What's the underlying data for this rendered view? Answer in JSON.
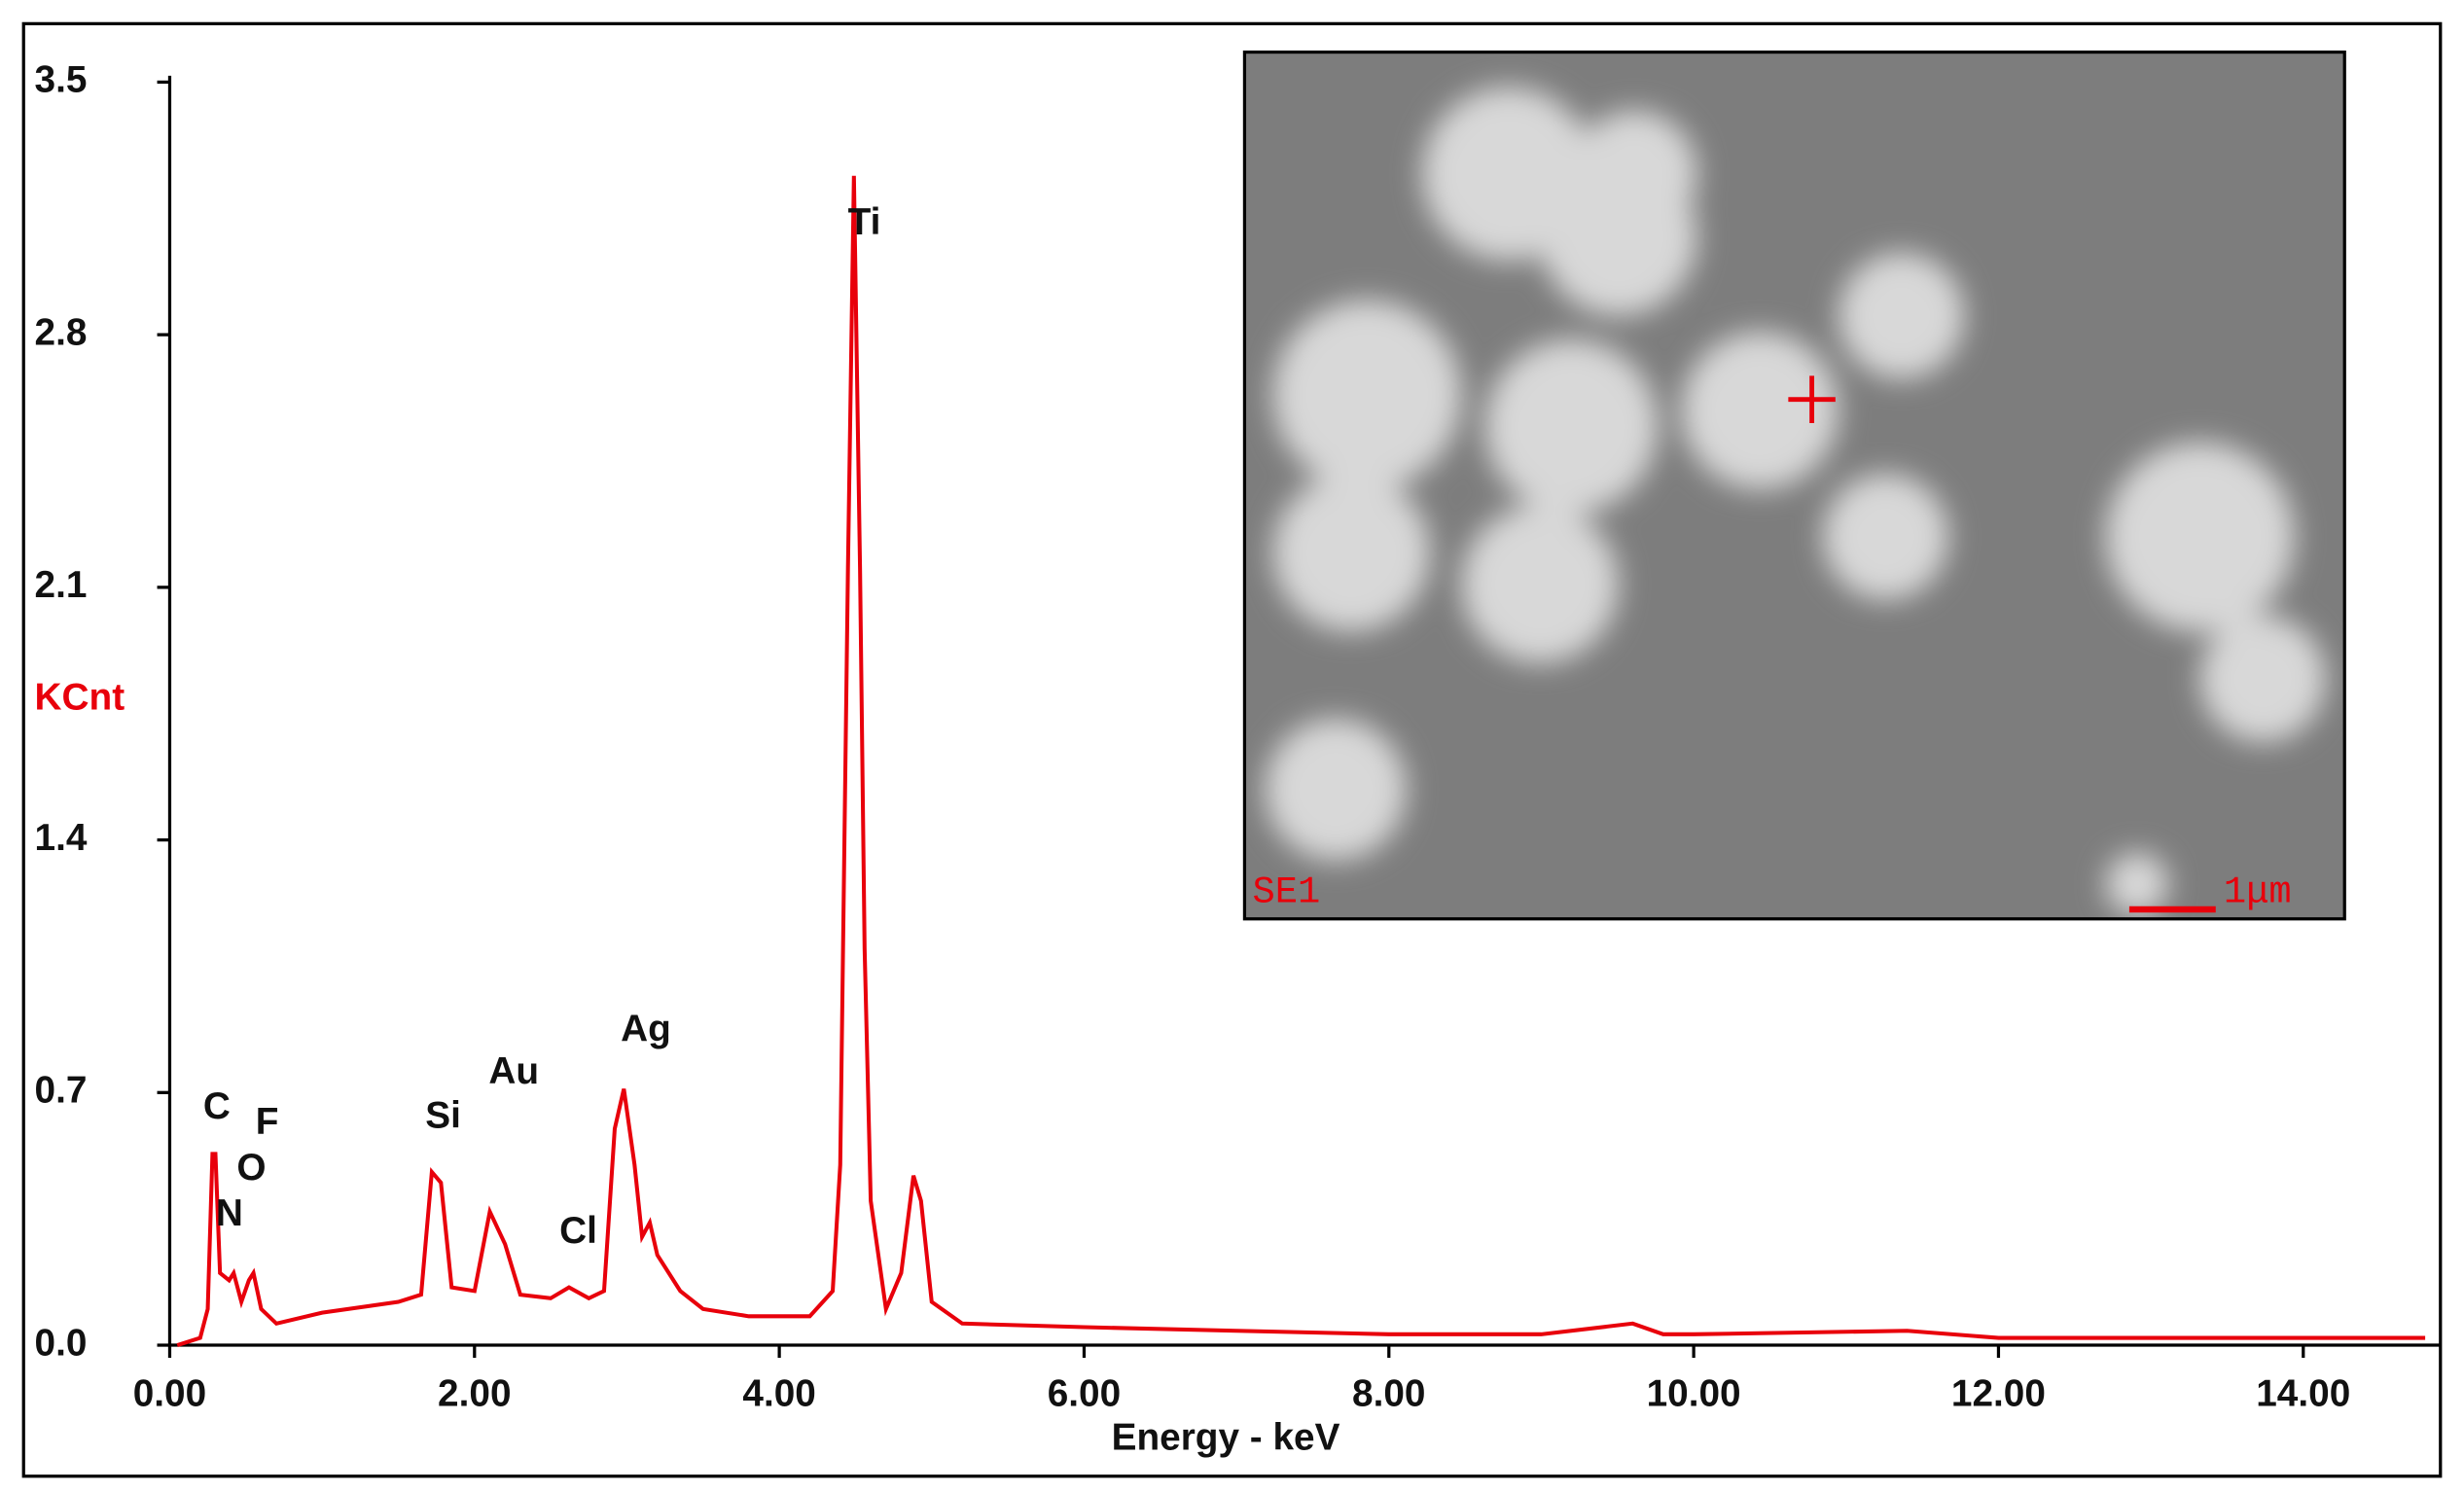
{
  "chart_data": {
    "type": "line",
    "x_label": "Energy - keV",
    "y_label": "KCnt",
    "x": [
      0.05,
      0.2,
      0.25,
      0.28,
      0.3,
      0.33,
      0.39,
      0.42,
      0.47,
      0.52,
      0.55,
      0.6,
      0.7,
      1.0,
      1.5,
      1.65,
      1.72,
      1.78,
      1.85,
      2.0,
      2.1,
      2.2,
      2.3,
      2.5,
      2.62,
      2.75,
      2.85,
      2.92,
      2.98,
      3.05,
      3.1,
      3.15,
      3.2,
      3.35,
      3.5,
      3.8,
      4.2,
      4.35,
      4.4,
      4.45,
      4.49,
      4.53,
      4.56,
      4.6,
      4.7,
      4.8,
      4.88,
      4.93,
      5.0,
      5.2,
      6,
      7,
      8,
      9,
      9.6,
      9.8,
      10,
      11.4,
      12,
      13,
      14,
      14.8
    ],
    "values": [
      0,
      0.02,
      0.1,
      0.53,
      0.53,
      0.2,
      0.18,
      0.2,
      0.12,
      0.18,
      0.2,
      0.1,
      0.06,
      0.09,
      0.12,
      0.14,
      0.48,
      0.45,
      0.16,
      0.15,
      0.37,
      0.28,
      0.14,
      0.13,
      0.16,
      0.13,
      0.15,
      0.6,
      0.71,
      0.5,
      0.3,
      0.34,
      0.25,
      0.15,
      0.1,
      0.08,
      0.08,
      0.15,
      0.5,
      2.15,
      3.24,
      2.15,
      1.1,
      0.4,
      0.1,
      0.2,
      0.47,
      0.4,
      0.12,
      0.06,
      0.05,
      0.04,
      0.03,
      0.03,
      0.06,
      0.03,
      0.03,
      0.04,
      0.02,
      0.02,
      0.02,
      0.02
    ],
    "color": "#e8000b",
    "xlim": [
      0,
      14.9
    ],
    "ylim": [
      0,
      3.5
    ],
    "xticks": [
      {
        "value": 0,
        "label": "0.00"
      },
      {
        "value": 2,
        "label": "2.00"
      },
      {
        "value": 4,
        "label": "4.00"
      },
      {
        "value": 6,
        "label": "6.00"
      },
      {
        "value": 8,
        "label": "8.00"
      },
      {
        "value": 10,
        "label": "10.00"
      },
      {
        "value": 12,
        "label": "12.00"
      },
      {
        "value": 14,
        "label": "14.00"
      }
    ],
    "yticks": [
      {
        "value": 0,
        "label": "0.0"
      },
      0.7,
      1.4,
      2.1,
      2.8,
      3.5
    ],
    "annotations": [
      "C",
      "F",
      "O",
      "N",
      "Si",
      "Au",
      "Cl",
      "Ag",
      "Ti"
    ]
  },
  "inset": {
    "label": "SE1",
    "scale_bar": "1μm"
  }
}
